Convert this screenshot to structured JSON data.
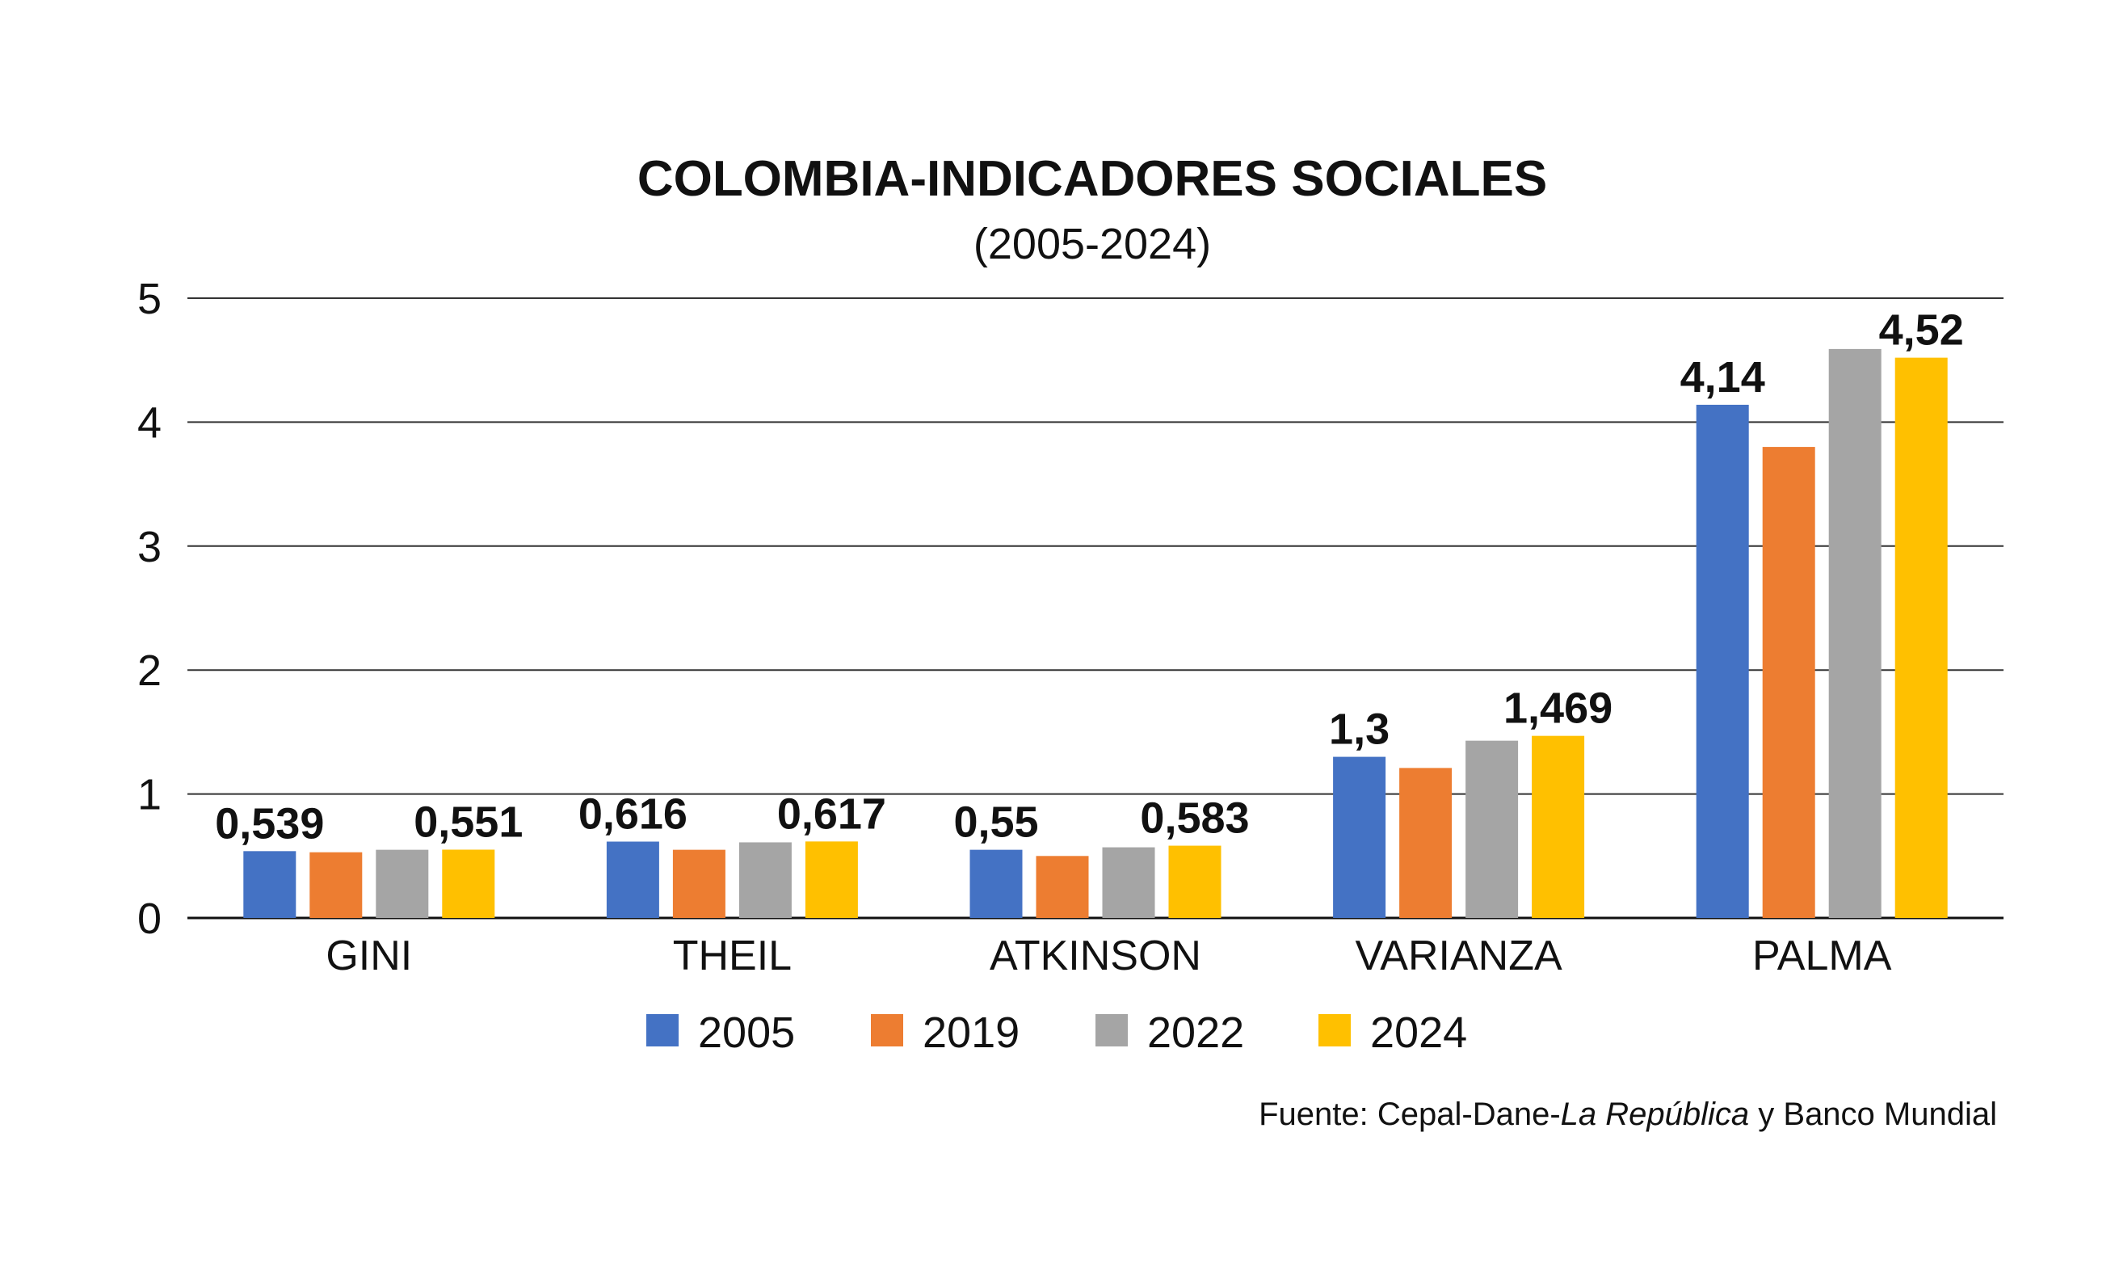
{
  "chart_data": {
    "type": "bar",
    "title": "COLOMBIA-INDICADORES SOCIALES",
    "subtitle": "(2005-2024)",
    "categories": [
      "GINI",
      "THEIL",
      "ATKINSON",
      "VARIANZA",
      "PALMA"
    ],
    "ylim": [
      0,
      5
    ],
    "yticks": [
      "0",
      "1",
      "2",
      "3",
      "4",
      "5"
    ],
    "grid": true,
    "legend_placement": "bottom",
    "series": [
      {
        "name": "2005",
        "color": "#4472C4",
        "values": [
          0.539,
          0.616,
          0.55,
          1.3,
          4.14
        ],
        "labels": [
          "0,539",
          "0,616",
          "0,55",
          "1,3",
          "4,14"
        ]
      },
      {
        "name": "2019",
        "color": "#ED7D31",
        "values": [
          0.53,
          0.55,
          0.5,
          1.21,
          3.8
        ],
        "labels": []
      },
      {
        "name": "2022",
        "color": "#A5A5A5",
        "values": [
          0.55,
          0.61,
          0.57,
          1.43,
          4.59
        ],
        "labels": []
      },
      {
        "name": "2024",
        "color": "#FFC000",
        "values": [
          0.551,
          0.617,
          0.583,
          1.469,
          4.52
        ],
        "labels": [
          "0,551",
          "0,617",
          "0,583",
          "1,469",
          "4,52"
        ]
      }
    ],
    "source": {
      "prefix": "Fuente: Cepal-Dane-",
      "italic": "La República",
      "suffix": " y Banco Mundial"
    }
  }
}
